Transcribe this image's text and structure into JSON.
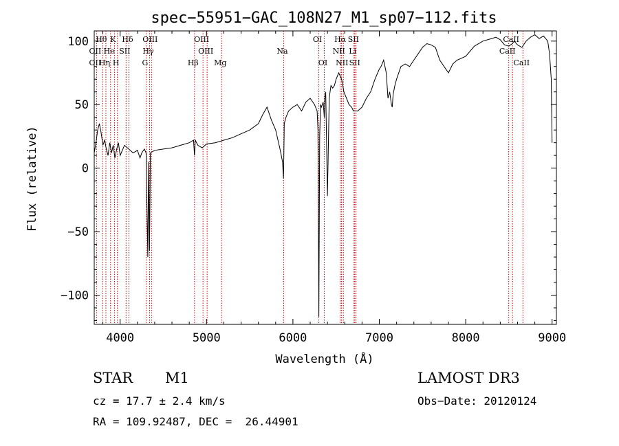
{
  "chart_data": {
    "type": "line",
    "title": "spec−55951−GAC_108N27_M1_sp07−112.fits",
    "xlabel": "Wavelength (Å)",
    "ylabel": "Flux (relative)",
    "xlim": [
      3700,
      9050
    ],
    "ylim": [
      -123,
      108
    ],
    "xticks": [
      4000,
      5000,
      6000,
      7000,
      8000,
      9000
    ],
    "yticks": [
      -100,
      -50,
      0,
      50,
      100
    ],
    "ytick_labels": [
      "−100",
      "−50",
      "0",
      "50",
      "100"
    ],
    "series": [
      {
        "name": "flux",
        "x": [
          3700,
          3720,
          3740,
          3760,
          3780,
          3800,
          3820,
          3840,
          3860,
          3880,
          3900,
          3920,
          3940,
          3960,
          3980,
          4000,
          4050,
          4100,
          4150,
          4200,
          4230,
          4250,
          4280,
          4300,
          4320,
          4330,
          4340,
          4350,
          4400,
          4500,
          4600,
          4700,
          4800,
          4850,
          4861,
          4870,
          4900,
          4950,
          5000,
          5100,
          5200,
          5300,
          5400,
          5500,
          5600,
          5650,
          5700,
          5750,
          5800,
          5850,
          5880,
          5890,
          5895,
          5900,
          5920,
          5950,
          6000,
          6050,
          6100,
          6150,
          6200,
          6250,
          6280,
          6290,
          6300,
          6310,
          6320,
          6330,
          6350,
          6363,
          6370,
          6380,
          6400,
          6420,
          6430,
          6440,
          6460,
          6480,
          6500,
          6530,
          6550,
          6563,
          6570,
          6590,
          6620,
          6650,
          6680,
          6700,
          6750,
          6800,
          6850,
          6900,
          6950,
          7000,
          7020,
          7050,
          7080,
          7100,
          7120,
          7140,
          7150,
          7160,
          7180,
          7200,
          7250,
          7300,
          7350,
          7400,
          7450,
          7500,
          7550,
          7600,
          7650,
          7700,
          7750,
          7800,
          7850,
          7900,
          8000,
          8100,
          8200,
          8300,
          8350,
          8400,
          8450,
          8500,
          8520,
          8540,
          8560,
          8600,
          8650,
          8700,
          8750,
          8800,
          8850,
          8900,
          8950,
          8970,
          8990,
          9000
        ],
        "y": [
          12,
          20,
          30,
          35,
          28,
          18,
          22,
          15,
          10,
          20,
          12,
          18,
          8,
          15,
          20,
          10,
          18,
          15,
          12,
          14,
          8,
          12,
          15,
          12,
          -70,
          5,
          -65,
          12,
          14,
          15,
          16,
          18,
          20,
          22,
          10,
          22,
          18,
          16,
          19,
          20,
          22,
          24,
          27,
          30,
          35,
          42,
          48,
          38,
          30,
          15,
          5,
          -8,
          10,
          35,
          40,
          45,
          48,
          50,
          45,
          52,
          55,
          50,
          45,
          30,
          -117,
          25,
          50,
          48,
          52,
          40,
          55,
          60,
          -22,
          55,
          60,
          65,
          63,
          65,
          70,
          75,
          72,
          70,
          68,
          60,
          55,
          50,
          48,
          45,
          45,
          48,
          55,
          60,
          70,
          78,
          80,
          85,
          75,
          55,
          60,
          50,
          48,
          58,
          65,
          70,
          80,
          82,
          80,
          85,
          90,
          95,
          98,
          97,
          95,
          85,
          80,
          75,
          82,
          85,
          88,
          96,
          100,
          102,
          103,
          101,
          97,
          96,
          97,
          98,
          100,
          97,
          95,
          100,
          103,
          105,
          102,
          104,
          100,
          90,
          70,
          20
        ]
      }
    ],
    "spectral_lines": [
      {
        "name": "Hθ",
        "wavelength": 3798,
        "row": 1
      },
      {
        "name": "OII",
        "wavelength": 3727,
        "row": 2
      },
      {
        "name": "OII",
        "wavelength": 3727,
        "row": 3
      },
      {
        "name": "He",
        "wavelength": 3889,
        "row": 2
      },
      {
        "name": "Hη",
        "wavelength": 3835,
        "row": 3
      },
      {
        "name": "K",
        "wavelength": 3934,
        "row": 1
      },
      {
        "name": "SII",
        "wavelength": 4069,
        "row": 2
      },
      {
        "name": "H",
        "wavelength": 3968,
        "row": 3
      },
      {
        "name": "Hδ",
        "wavelength": 4102,
        "row": 1
      },
      {
        "name": "OIII",
        "wavelength": 4363,
        "row": 1
      },
      {
        "name": "Hγ",
        "wavelength": 4341,
        "row": 2
      },
      {
        "name": "G",
        "wavelength": 4304,
        "row": 3
      },
      {
        "name": "Hβ",
        "wavelength": 4861,
        "row": 3
      },
      {
        "name": "OIII",
        "wavelength": 4959,
        "row": 1
      },
      {
        "name": "OIII",
        "wavelength": 5007,
        "row": 2
      },
      {
        "name": "Mg",
        "wavelength": 5175,
        "row": 3
      },
      {
        "name": "Na",
        "wavelength": 5893,
        "row": 2
      },
      {
        "name": "OI",
        "wavelength": 6300,
        "row": 1
      },
      {
        "name": "OI",
        "wavelength": 6363,
        "row": 3
      },
      {
        "name": "Hα",
        "wavelength": 6563,
        "row": 1
      },
      {
        "name": "SII",
        "wavelength": 6716,
        "row": 1
      },
      {
        "name": "NII",
        "wavelength": 6548,
        "row": 2
      },
      {
        "name": "Li",
        "wavelength": 6707,
        "row": 2
      },
      {
        "name": "NII",
        "wavelength": 6584,
        "row": 3
      },
      {
        "name": "SII",
        "wavelength": 6731,
        "row": 3
      },
      {
        "name": "CaII",
        "wavelength": 8542,
        "row": 1
      },
      {
        "name": "CaII",
        "wavelength": 8498,
        "row": 2
      },
      {
        "name": "CaII",
        "wavelength": 8662,
        "row": 3
      }
    ],
    "line_color": "#000000",
    "marker_color": "#cc0000"
  },
  "info": {
    "object_class": "STAR",
    "subclass": "M1",
    "survey": "LAMOST DR3",
    "redshift": "cz = 17.7 ± 2.4 km/s",
    "obs_date": "Obs−Date: 20120124",
    "coords": "RA = 109.92487, DEC =  26.44901"
  }
}
